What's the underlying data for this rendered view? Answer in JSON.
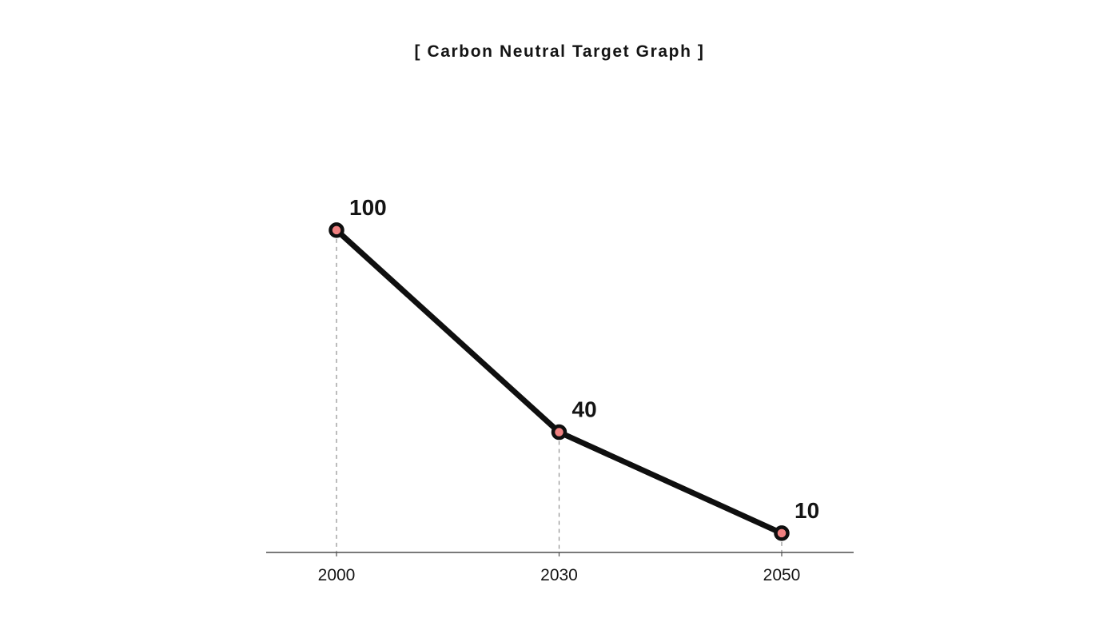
{
  "title": "[ Carbon Neutral Target Graph ]",
  "chart_data": {
    "type": "line",
    "title": "[ Carbon Neutral Target Graph ]",
    "categories": [
      "2000",
      "2030",
      "2050"
    ],
    "values": [
      100,
      40,
      10
    ],
    "point_labels": [
      "100",
      "40",
      "10"
    ],
    "xlabel": "",
    "ylabel": "",
    "ylim": [
      0,
      110
    ],
    "legend_position": "none",
    "gridlines": false,
    "drop_lines": "dashed vertical line from each data point down to the x-axis",
    "colors": {
      "line": "#0f0f0f",
      "point_fill": "#F08080",
      "point_stroke": "#0f0f0f",
      "axis": "#4d4d4d",
      "drop_line": "#8f8f8f",
      "text": "#141414"
    }
  }
}
